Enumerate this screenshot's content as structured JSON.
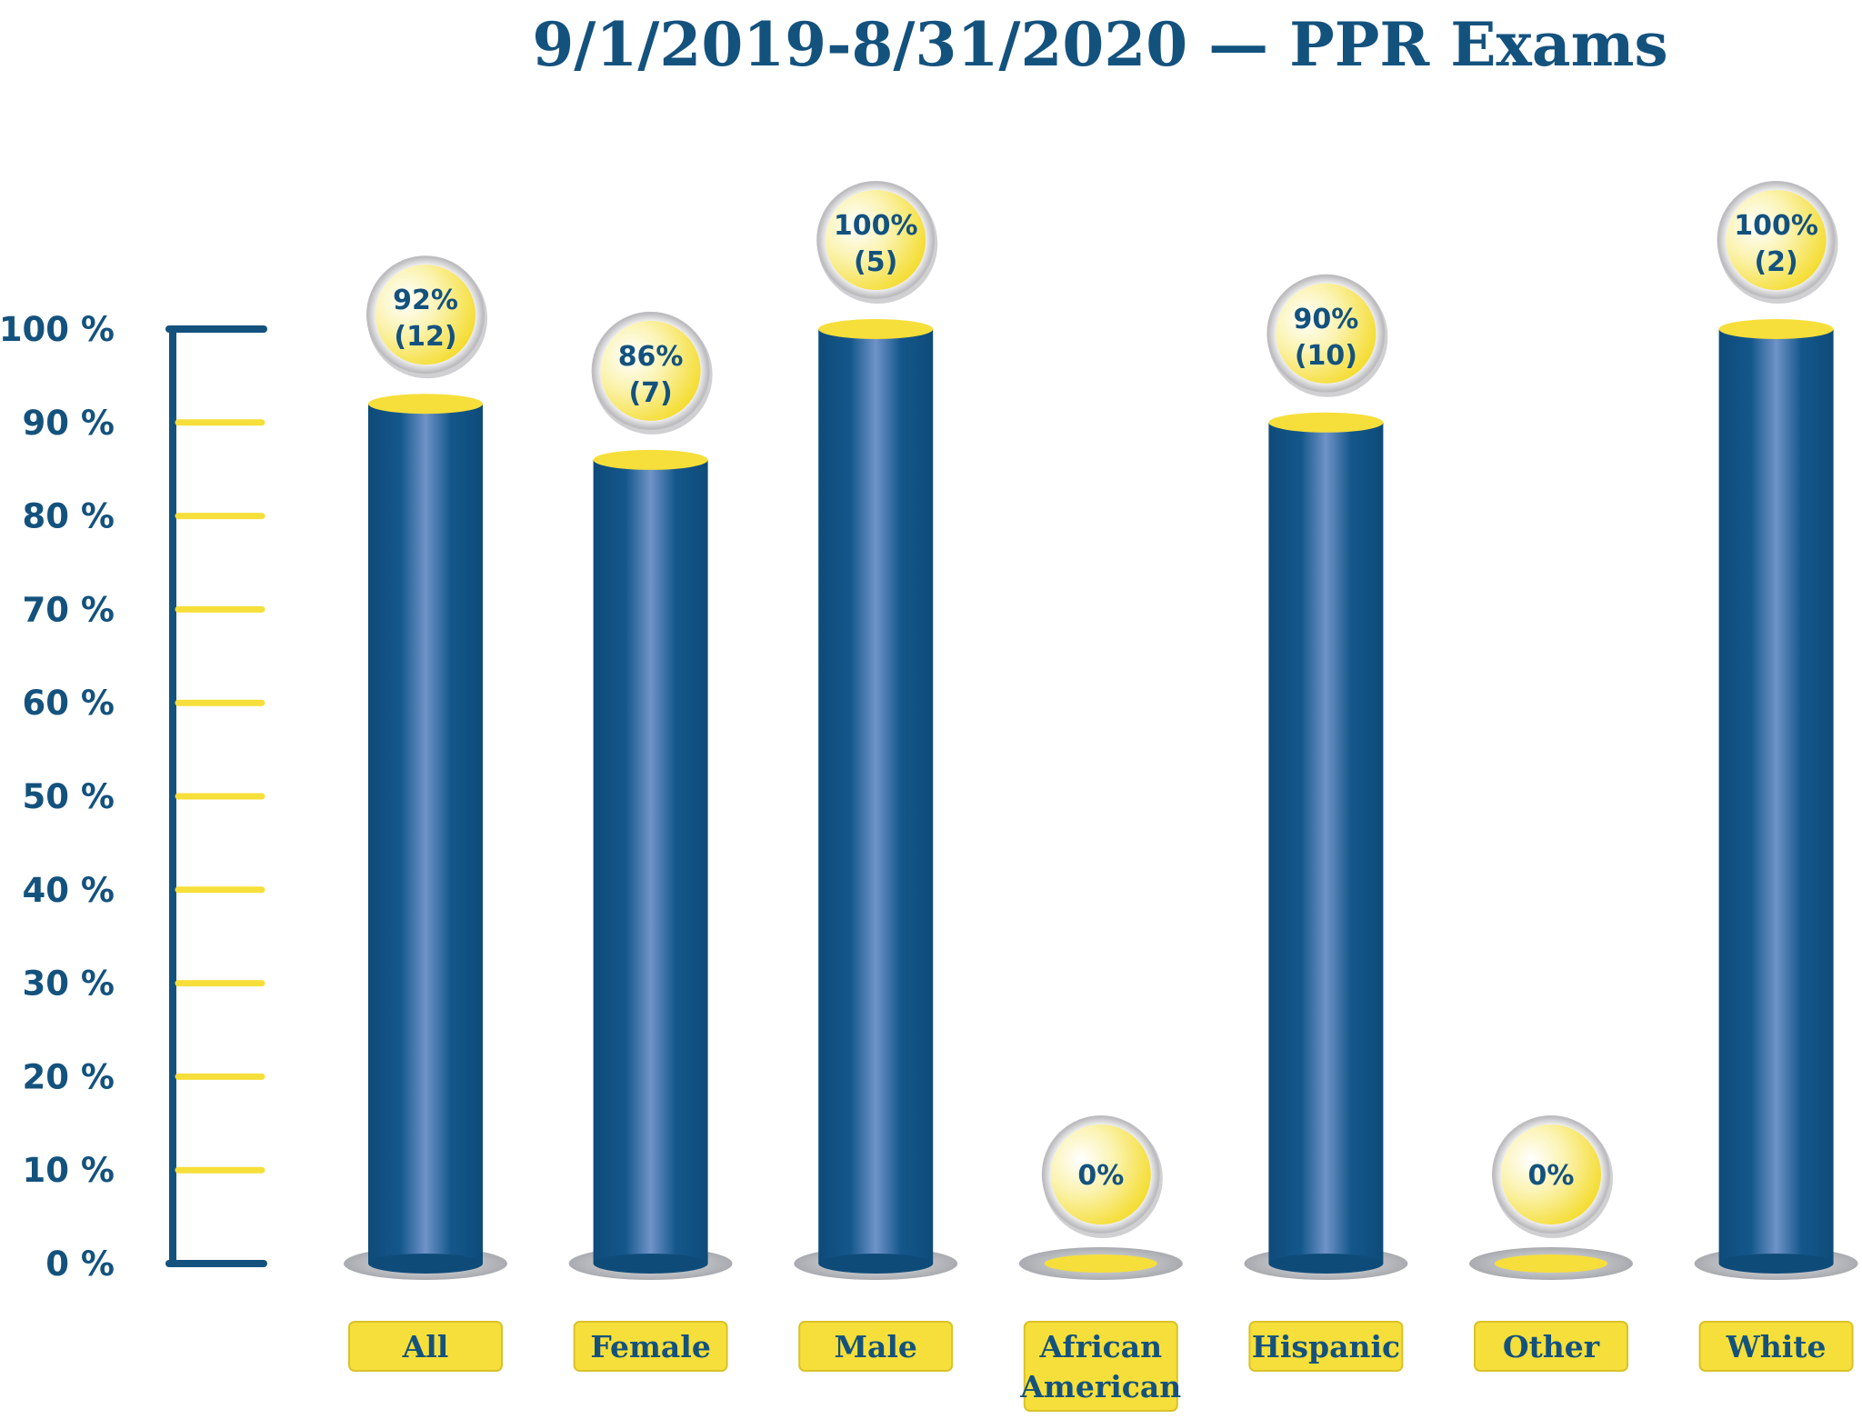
{
  "chart_data": {
    "type": "bar",
    "title": "9/1/2019-8/31/2020 — PPR Exams",
    "categories": [
      {
        "lines": [
          "All"
        ]
      },
      {
        "lines": [
          "Female"
        ]
      },
      {
        "lines": [
          "Male"
        ]
      },
      {
        "lines": [
          "African",
          "American"
        ]
      },
      {
        "lines": [
          "Hispanic"
        ]
      },
      {
        "lines": [
          "Other"
        ]
      },
      {
        "lines": [
          "White"
        ]
      }
    ],
    "values": [
      92,
      86,
      100,
      0,
      90,
      0,
      100
    ],
    "data_labels": [
      {
        "pct": "92%",
        "count": "(12)"
      },
      {
        "pct": "86%",
        "count": "(7)"
      },
      {
        "pct": "100%",
        "count": "(5)"
      },
      {
        "pct": "0%",
        "count": ""
      },
      {
        "pct": "90%",
        "count": "(10)"
      },
      {
        "pct": "0%",
        "count": ""
      },
      {
        "pct": "100%",
        "count": "(2)"
      }
    ],
    "y_ticks": [
      "0 %",
      "10 %",
      "20 %",
      "30 %",
      "40 %",
      "50 %",
      "60 %",
      "70 %",
      "80 %",
      "90 %",
      "100 %"
    ],
    "ylim": [
      0,
      100
    ],
    "xlabel": "",
    "ylabel": "",
    "grid": false,
    "legend": "none",
    "colors": {
      "bar": "#0f4e7d",
      "bar_highlight": "#6f93c8",
      "cap": "#f6df3a",
      "axis": "#14527e",
      "label_bg": "#f6df3a",
      "text": "#14527e",
      "base": "#c8c9cc"
    }
  }
}
